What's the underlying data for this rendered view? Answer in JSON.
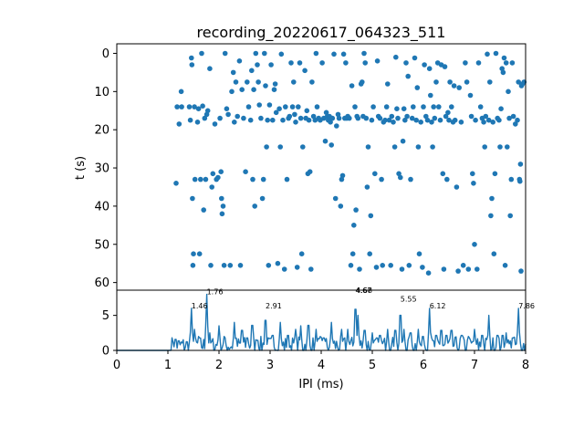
{
  "chart_data": [
    {
      "type": "scatter",
      "title": "recording_20220617_064323_511",
      "xlabel": "",
      "ylabel": "t (s)",
      "xlim": [
        0,
        8
      ],
      "ylim": [
        62,
        -2.5
      ],
      "y_inverted": true,
      "y_ticks": [
        0,
        10,
        20,
        30,
        40,
        50,
        60
      ],
      "y_tick_labels": [
        "0",
        "10",
        "20",
        "30",
        "40",
        "50",
        "60"
      ],
      "marker_color": "#1f77b4",
      "points": [
        [
          1.16,
          34
        ],
        [
          1.18,
          14
        ],
        [
          1.22,
          18.5
        ],
        [
          1.26,
          10
        ],
        [
          1.27,
          14
        ],
        [
          1.42,
          14
        ],
        [
          1.44,
          17.5
        ],
        [
          1.46,
          1.2
        ],
        [
          1.47,
          3
        ],
        [
          1.48,
          38
        ],
        [
          1.49,
          55.5
        ],
        [
          1.5,
          52.5
        ],
        [
          1.52,
          14
        ],
        [
          1.53,
          33
        ],
        [
          1.58,
          18
        ],
        [
          1.6,
          14.5
        ],
        [
          1.62,
          52.5
        ],
        [
          1.64,
          33
        ],
        [
          1.66,
          0
        ],
        [
          1.68,
          13.8
        ],
        [
          1.7,
          41
        ],
        [
          1.72,
          17
        ],
        [
          1.74,
          33
        ],
        [
          1.76,
          16
        ],
        [
          1.78,
          15
        ],
        [
          1.82,
          4
        ],
        [
          1.84,
          55.5
        ],
        [
          1.86,
          35
        ],
        [
          1.88,
          31.5
        ],
        [
          1.92,
          18.5
        ],
        [
          1.95,
          33
        ],
        [
          1.98,
          32.5
        ],
        [
          2.02,
          17
        ],
        [
          2.04,
          31
        ],
        [
          2.05,
          38
        ],
        [
          2.06,
          42
        ],
        [
          2.08,
          40
        ],
        [
          2.1,
          55.5
        ],
        [
          2.12,
          0
        ],
        [
          2.15,
          14.5
        ],
        [
          2.18,
          16
        ],
        [
          2.22,
          55.5
        ],
        [
          2.25,
          10
        ],
        [
          2.28,
          5
        ],
        [
          2.3,
          18
        ],
        [
          2.33,
          7.5
        ],
        [
          2.36,
          16.5
        ],
        [
          2.4,
          2
        ],
        [
          2.42,
          55.5
        ],
        [
          2.45,
          9.5
        ],
        [
          2.48,
          17
        ],
        [
          2.52,
          31
        ],
        [
          2.55,
          7.5
        ],
        [
          2.58,
          14
        ],
        [
          2.62,
          17.5
        ],
        [
          2.64,
          4.5
        ],
        [
          2.66,
          33
        ],
        [
          2.68,
          9.5
        ],
        [
          2.7,
          40
        ],
        [
          2.72,
          0
        ],
        [
          2.75,
          3
        ],
        [
          2.77,
          7.5
        ],
        [
          2.79,
          13.5
        ],
        [
          2.82,
          17
        ],
        [
          2.85,
          38
        ],
        [
          2.87,
          33
        ],
        [
          2.89,
          0
        ],
        [
          2.91,
          8.5
        ],
        [
          2.93,
          24.5
        ],
        [
          2.95,
          17.5
        ],
        [
          2.97,
          55.5
        ],
        [
          2.99,
          13.5
        ],
        [
          3.02,
          3
        ],
        [
          3.05,
          17.5
        ],
        [
          3.08,
          9.5
        ],
        [
          3.1,
          8
        ],
        [
          3.12,
          15.5
        ],
        [
          3.15,
          55
        ],
        [
          3.18,
          14.5
        ],
        [
          3.2,
          24.5
        ],
        [
          3.22,
          0.2
        ],
        [
          3.25,
          17.5
        ],
        [
          3.28,
          56.5
        ],
        [
          3.3,
          14
        ],
        [
          3.33,
          33
        ],
        [
          3.36,
          17
        ],
        [
          3.38,
          16.5
        ],
        [
          3.41,
          2.5
        ],
        [
          3.44,
          14
        ],
        [
          3.46,
          7.5
        ],
        [
          3.48,
          16
        ],
        [
          3.5,
          18
        ],
        [
          3.53,
          56
        ],
        [
          3.55,
          14
        ],
        [
          3.58,
          2.5
        ],
        [
          3.6,
          17
        ],
        [
          3.62,
          52.5
        ],
        [
          3.64,
          24.5
        ],
        [
          3.68,
          4.5
        ],
        [
          3.7,
          17
        ],
        [
          3.72,
          15
        ],
        [
          3.74,
          31.5
        ],
        [
          3.76,
          17.5
        ],
        [
          3.78,
          31
        ],
        [
          3.8,
          56.5
        ],
        [
          3.82,
          7.5
        ],
        [
          3.85,
          16.5
        ],
        [
          3.88,
          17.5
        ],
        [
          3.9,
          0
        ],
        [
          3.92,
          14
        ],
        [
          3.95,
          17
        ],
        [
          3.98,
          17.5
        ],
        [
          4.02,
          2.5
        ],
        [
          4.05,
          17
        ],
        [
          4.08,
          23
        ],
        [
          4.1,
          15.5
        ],
        [
          4.12,
          16.5
        ],
        [
          4.14,
          17.5
        ],
        [
          4.16,
          16.5
        ],
        [
          4.18,
          18
        ],
        [
          4.2,
          24
        ],
        [
          4.22,
          17
        ],
        [
          4.25,
          0.2
        ],
        [
          4.28,
          38
        ],
        [
          4.3,
          19
        ],
        [
          4.33,
          16
        ],
        [
          4.35,
          17
        ],
        [
          4.38,
          40
        ],
        [
          4.4,
          33
        ],
        [
          4.42,
          32
        ],
        [
          4.44,
          0.2
        ],
        [
          4.46,
          17
        ],
        [
          4.48,
          2.5
        ],
        [
          4.5,
          17
        ],
        [
          4.52,
          16.5
        ],
        [
          4.55,
          17
        ],
        [
          4.58,
          55.5
        ],
        [
          4.6,
          8.5
        ],
        [
          4.62,
          52.5
        ],
        [
          4.64,
          45
        ],
        [
          4.66,
          14
        ],
        [
          4.68,
          41
        ],
        [
          4.7,
          16.5
        ],
        [
          4.72,
          17
        ],
        [
          4.75,
          56.5
        ],
        [
          4.78,
          8
        ],
        [
          4.8,
          7.5
        ],
        [
          4.82,
          16.5
        ],
        [
          4.84,
          0
        ],
        [
          4.86,
          2.5
        ],
        [
          4.88,
          17
        ],
        [
          4.9,
          35
        ],
        [
          4.92,
          24.5
        ],
        [
          4.95,
          52.5
        ],
        [
          4.97,
          42.5
        ],
        [
          4.99,
          17.5
        ],
        [
          5.02,
          14
        ],
        [
          5.05,
          31.5
        ],
        [
          5.08,
          56
        ],
        [
          5.1,
          2
        ],
        [
          5.12,
          16.5
        ],
        [
          5.15,
          17
        ],
        [
          5.18,
          33
        ],
        [
          5.2,
          55.5
        ],
        [
          5.22,
          18
        ],
        [
          5.25,
          17.5
        ],
        [
          5.28,
          14
        ],
        [
          5.3,
          8
        ],
        [
          5.33,
          17.5
        ],
        [
          5.36,
          55.5
        ],
        [
          5.38,
          16.5
        ],
        [
          5.41,
          18
        ],
        [
          5.44,
          24.5
        ],
        [
          5.46,
          1
        ],
        [
          5.48,
          14.5
        ],
        [
          5.5,
          17
        ],
        [
          5.52,
          31.5
        ],
        [
          5.55,
          32.5
        ],
        [
          5.58,
          56.5
        ],
        [
          5.6,
          23
        ],
        [
          5.62,
          14.5
        ],
        [
          5.64,
          17.5
        ],
        [
          5.66,
          2.5
        ],
        [
          5.68,
          16.5
        ],
        [
          5.7,
          6
        ],
        [
          5.72,
          55.5
        ],
        [
          5.75,
          33
        ],
        [
          5.78,
          17
        ],
        [
          5.8,
          14
        ],
        [
          5.83,
          1.2
        ],
        [
          5.86,
          17.5
        ],
        [
          5.88,
          9
        ],
        [
          5.9,
          24.5
        ],
        [
          5.92,
          52.5
        ],
        [
          5.95,
          18
        ],
        [
          5.98,
          56
        ],
        [
          6.0,
          14
        ],
        [
          6.02,
          3
        ],
        [
          6.05,
          16.5
        ],
        [
          6.08,
          17.5
        ],
        [
          6.1,
          57.5
        ],
        [
          6.12,
          4
        ],
        [
          6.14,
          11
        ],
        [
          6.16,
          18
        ],
        [
          6.18,
          24.5
        ],
        [
          6.2,
          14
        ],
        [
          6.22,
          17
        ],
        [
          6.25,
          7.5
        ],
        [
          6.28,
          2.5
        ],
        [
          6.3,
          14
        ],
        [
          6.33,
          17.5
        ],
        [
          6.35,
          3
        ],
        [
          6.38,
          31.5
        ],
        [
          6.4,
          56.5
        ],
        [
          6.42,
          3.5
        ],
        [
          6.44,
          16.5
        ],
        [
          6.46,
          33
        ],
        [
          6.48,
          15.5
        ],
        [
          6.5,
          17.5
        ],
        [
          6.52,
          7.5
        ],
        [
          6.55,
          14
        ],
        [
          6.58,
          18
        ],
        [
          6.6,
          8.5
        ],
        [
          6.62,
          17.5
        ],
        [
          6.65,
          35
        ],
        [
          6.68,
          57
        ],
        [
          6.7,
          9
        ],
        [
          6.74,
          18
        ],
        [
          6.78,
          55.5
        ],
        [
          6.82,
          2.5
        ],
        [
          6.85,
          7.5
        ],
        [
          6.88,
          56.5
        ],
        [
          6.92,
          11
        ],
        [
          6.94,
          16.5
        ],
        [
          6.96,
          31.5
        ],
        [
          6.98,
          34
        ],
        [
          7.0,
          50
        ],
        [
          7.02,
          17.5
        ],
        [
          7.05,
          56.5
        ],
        [
          7.08,
          2.5
        ],
        [
          7.12,
          14
        ],
        [
          7.15,
          17
        ],
        [
          7.18,
          18
        ],
        [
          7.2,
          24.5
        ],
        [
          7.22,
          16.5
        ],
        [
          7.25,
          0.2
        ],
        [
          7.28,
          17.5
        ],
        [
          7.3,
          7.5
        ],
        [
          7.32,
          42.5
        ],
        [
          7.34,
          38
        ],
        [
          7.36,
          18
        ],
        [
          7.38,
          52.5
        ],
        [
          7.4,
          31.5
        ],
        [
          7.42,
          0
        ],
        [
          7.45,
          17
        ],
        [
          7.48,
          17.5
        ],
        [
          7.5,
          24.5
        ],
        [
          7.52,
          14.5
        ],
        [
          7.54,
          4
        ],
        [
          7.56,
          5
        ],
        [
          7.58,
          1.2
        ],
        [
          7.6,
          55.5
        ],
        [
          7.62,
          2.5
        ],
        [
          7.64,
          24.5
        ],
        [
          7.66,
          10
        ],
        [
          7.68,
          17
        ],
        [
          7.7,
          42.5
        ],
        [
          7.72,
          33
        ],
        [
          7.74,
          2.5
        ],
        [
          7.76,
          16.5
        ],
        [
          7.8,
          18.5
        ],
        [
          7.84,
          17.5
        ],
        [
          7.86,
          7.5
        ],
        [
          7.88,
          33
        ],
        [
          7.89,
          33.5
        ],
        [
          7.9,
          29
        ],
        [
          7.91,
          57
        ],
        [
          7.92,
          8.5
        ],
        [
          7.94,
          8
        ],
        [
          7.97,
          7.5
        ]
      ]
    },
    {
      "type": "line",
      "xlabel": "IPI (ms)",
      "ylabel": "",
      "xlim": [
        0,
        8
      ],
      "ylim": [
        0,
        8.6
      ],
      "x_ticks": [
        0,
        1,
        2,
        3,
        4,
        5,
        6,
        7,
        8
      ],
      "x_tick_labels": [
        "0",
        "1",
        "2",
        "3",
        "4",
        "5",
        "6",
        "7",
        "8"
      ],
      "y_ticks": [
        0,
        5
      ],
      "y_tick_labels": [
        "0",
        "5"
      ],
      "line_color": "#1f77b4",
      "line_step": 0.02,
      "baseline_until": 1.0,
      "peaks": [
        [
          1.1,
          1.2
        ],
        [
          1.15,
          2.2
        ],
        [
          1.46,
          6
        ],
        [
          1.52,
          3
        ],
        [
          1.6,
          2
        ],
        [
          1.76,
          8
        ],
        [
          1.82,
          2.5
        ],
        [
          2.0,
          3.5
        ],
        [
          2.1,
          2
        ],
        [
          2.3,
          4
        ],
        [
          2.45,
          4
        ],
        [
          2.55,
          2.5
        ],
        [
          2.65,
          5
        ],
        [
          2.75,
          2
        ],
        [
          2.91,
          6
        ],
        [
          3.05,
          3
        ],
        [
          3.2,
          4
        ],
        [
          3.35,
          3
        ],
        [
          3.5,
          3
        ],
        [
          3.6,
          3.5
        ],
        [
          3.75,
          5
        ],
        [
          3.9,
          3
        ],
        [
          4.05,
          2.5
        ],
        [
          4.2,
          4
        ],
        [
          4.4,
          3
        ],
        [
          4.52,
          3
        ],
        [
          4.67,
          8.2
        ],
        [
          4.72,
          5
        ],
        [
          4.85,
          4
        ],
        [
          5.0,
          2.5
        ],
        [
          5.15,
          3
        ],
        [
          5.3,
          3
        ],
        [
          5.45,
          4
        ],
        [
          5.55,
          7
        ],
        [
          5.62,
          3
        ],
        [
          5.75,
          3.5
        ],
        [
          5.9,
          3
        ],
        [
          6.0,
          2
        ],
        [
          6.12,
          6
        ],
        [
          6.25,
          3
        ],
        [
          6.35,
          4
        ],
        [
          6.45,
          3
        ],
        [
          6.55,
          4
        ],
        [
          6.75,
          3
        ],
        [
          6.88,
          2
        ],
        [
          7.0,
          3
        ],
        [
          7.15,
          3
        ],
        [
          7.28,
          5
        ],
        [
          7.45,
          3
        ],
        [
          7.55,
          3
        ],
        [
          7.62,
          2.5
        ],
        [
          7.75,
          2.5
        ],
        [
          7.86,
          6
        ]
      ],
      "annotations": [
        {
          "x": 1.46,
          "y": 6.0,
          "text": "1.46"
        },
        {
          "x": 1.76,
          "y": 8.0,
          "text": "1.76"
        },
        {
          "x": 2.91,
          "y": 6.0,
          "text": "2.91"
        },
        {
          "x": 4.67,
          "y": 8.2,
          "text": "4.67"
        },
        {
          "x": 4.68,
          "y": 8.2,
          "text": "4.68"
        },
        {
          "x": 5.55,
          "y": 7.0,
          "text": "5.55"
        },
        {
          "x": 6.12,
          "y": 6.0,
          "text": "6.12"
        },
        {
          "x": 7.86,
          "y": 6.0,
          "text": "7.86"
        }
      ]
    }
  ]
}
